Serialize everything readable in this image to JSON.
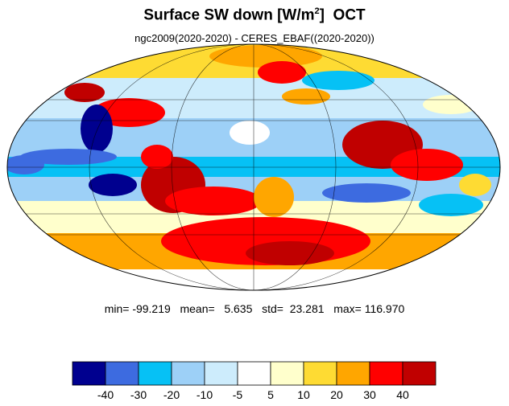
{
  "title": {
    "main": "Surface SW down [W/m",
    "sup": "2",
    "close": "]",
    "month": "OCT"
  },
  "subtitle": "ngc2009(2020-2020) - CERES_EBAF((2020-2020))",
  "stats": {
    "min_label": "min=",
    "min": "-99.219",
    "mean_label": "mean=",
    "mean": "5.635",
    "std_label": "std=",
    "std": "23.281",
    "max_label": "max=",
    "max": "116.970"
  },
  "legend": {
    "colors": [
      "#00008f",
      "#3d6be0",
      "#06c1f5",
      "#9dd0f7",
      "#cdecfc",
      "#ffffff",
      "#ffffcc",
      "#fedb33",
      "#ffa600",
      "#ff0000",
      "#c00000"
    ],
    "tick_labels": [
      "-40",
      "-30",
      "-20",
      "-10",
      "-5",
      "5",
      "10",
      "20",
      "30",
      "40"
    ]
  },
  "map": {
    "projection": "Mollweide",
    "palette": {
      "strong_negative": "#00008f",
      "negative": "#3d6be0",
      "moderate_negative": "#06c1f5",
      "weak_negative": "#9dd0f7",
      "slight_negative": "#cdecfc",
      "neutral": "#ffffff",
      "slight_positive": "#ffffcc",
      "weak_positive": "#fedb33",
      "moderate_positive": "#ffa600",
      "positive": "#ff0000",
      "strong_positive": "#c00000"
    }
  }
}
